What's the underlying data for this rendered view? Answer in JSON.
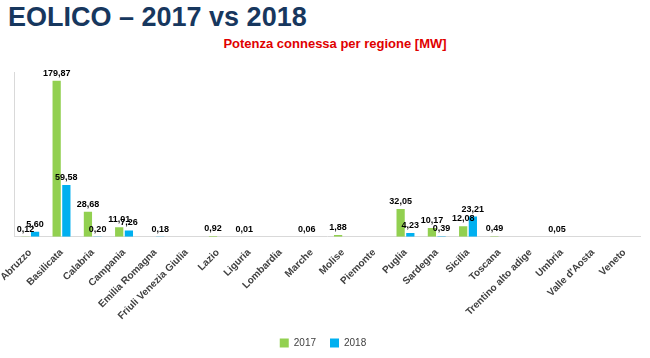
{
  "chart_data": {
    "type": "bar",
    "title": "EOLICO – 2017 vs 2018",
    "subtitle": "Potenza connessa per regione [MW]",
    "categories": [
      "Abruzzo",
      "Basilicata",
      "Calabria",
      "Campania",
      "Emilia Romagna",
      "Friuli Venezia Giulia",
      "Lazio",
      "Liguria",
      "Lombardia",
      "Marche",
      "Molise",
      "Piemonte",
      "Puglia",
      "Sardegna",
      "Sicilia",
      "Toscana",
      "Trentino alto adige",
      "Umbria",
      "Valle d'Aosta",
      "Veneto"
    ],
    "series": [
      {
        "name": "2017",
        "color": "#92d050",
        "values": [
          0.12,
          179.87,
          28.68,
          11.01,
          null,
          null,
          0.92,
          0.01,
          null,
          0.06,
          1.88,
          null,
          32.05,
          10.17,
          12.08,
          0.49,
          null,
          0.05,
          null,
          null
        ],
        "value_labels": [
          "0,12",
          "179,87",
          "28,68",
          "11,01",
          null,
          null,
          "0,92",
          "0,01",
          null,
          "0,06",
          "1,88",
          null,
          "32,05",
          "10,17",
          "12,08",
          "0,49",
          null,
          "0,05",
          null,
          null
        ]
      },
      {
        "name": "2018",
        "color": "#00b0f0",
        "values": [
          5.6,
          59.58,
          0.2,
          7.26,
          0.18,
          null,
          null,
          null,
          null,
          null,
          null,
          null,
          4.23,
          0.39,
          23.21,
          null,
          null,
          null,
          null,
          null
        ],
        "value_labels": [
          "5,60",
          "59,58",
          "0,20",
          "7,26",
          "0,18",
          null,
          null,
          null,
          null,
          null,
          null,
          null,
          "4,23",
          "0,39",
          "23,21",
          null,
          null,
          null,
          null,
          null
        ]
      }
    ],
    "ylim": [
      0,
      190
    ],
    "grid": false,
    "legend": "bottom",
    "data_labels": true,
    "tick_labels": "x"
  }
}
